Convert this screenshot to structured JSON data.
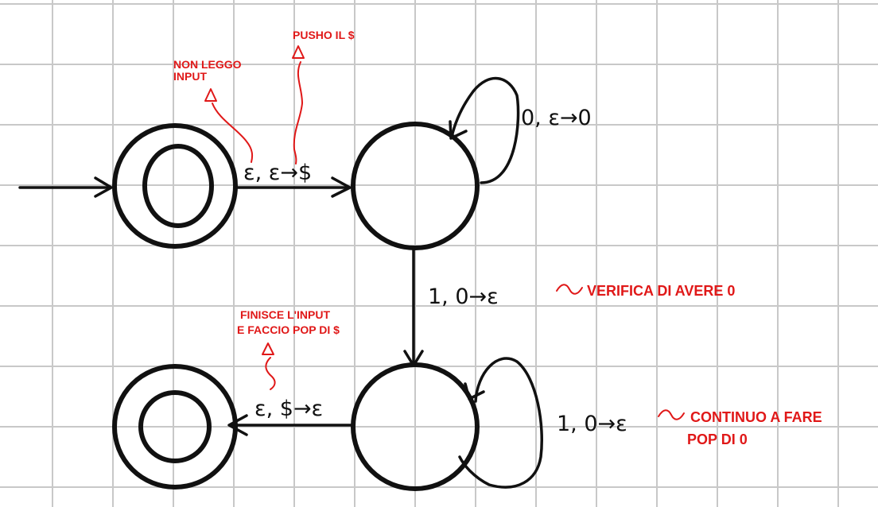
{
  "transitions": {
    "t01": "ε, ε→$",
    "t11": "0, ε→0",
    "t12": "1, 0→ε",
    "t22": "1, 0→ε",
    "t23": "ε, $→ε"
  },
  "notes": {
    "non_leggo_1": "NON LEGGO",
    "non_leggo_2": "INPUT",
    "pusho": "PUSHO IL $",
    "verifica": "VERIFICA DI AVERE 0",
    "finisce_1": "FINISCE L'INPUT",
    "finisce_2": "E FACCIO POP DI $",
    "continuo_1": "CONTINUO A FARE",
    "continuo_2": "POP DI 0"
  },
  "colors": {
    "ink": "#111111",
    "annotation": "#e01818",
    "grid": "#c8c8c8"
  }
}
